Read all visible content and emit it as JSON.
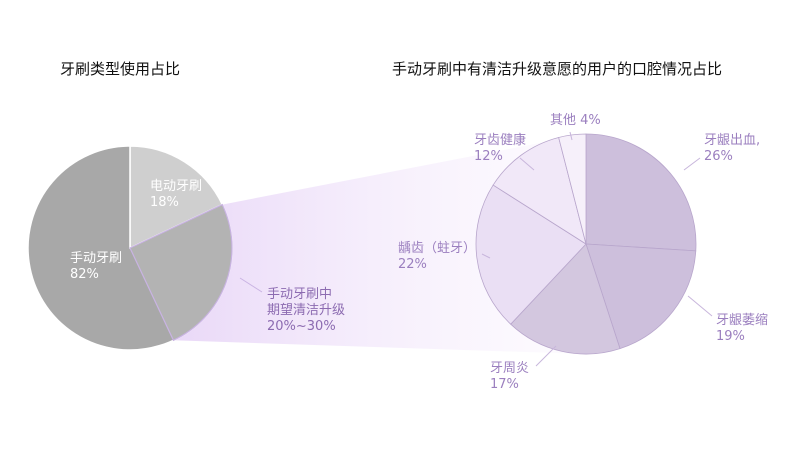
{
  "titles": {
    "left": "牙刷类型使用占比",
    "right": "手动牙刷中有清洁升级意愿的用户的口腔情况占比"
  },
  "upgrade_note": {
    "lines": [
      "手动牙刷中",
      "期望清洁升级",
      "20%~30%"
    ],
    "color": "#8c6bb1"
  },
  "chart_data": [
    {
      "type": "pie",
      "title": "牙刷类型使用占比",
      "slices": [
        {
          "label": "电动牙刷",
          "value": 18,
          "value_label": "18%",
          "color": "#cfcfcf"
        },
        {
          "label": "手动牙刷",
          "value": 82,
          "value_label": "82%",
          "color": "#a8a8a8"
        }
      ]
    },
    {
      "type": "pie",
      "title": "手动牙刷中有清洁升级意愿的用户的口腔情况占比",
      "slices": [
        {
          "label": "牙龈出血,",
          "value": 26,
          "value_label": "26%",
          "color": "#cdbfdc"
        },
        {
          "label": "牙龈萎缩",
          "value": 19,
          "value_label": "19%",
          "color": "#cdbfdc"
        },
        {
          "label": "牙周炎",
          "value": 17,
          "value_label": "17%",
          "color": "#d3c7df"
        },
        {
          "label": "龋齿（蛀牙）",
          "value": 22,
          "value_label": "22%",
          "color": "#eadff4"
        },
        {
          "label": "牙齿健康",
          "value": 12,
          "value_label": "12%",
          "color": "#f1e8f8"
        },
        {
          "label": "其他",
          "value": 4,
          "value_label": "4%",
          "color": "#f6f0fa"
        }
      ]
    }
  ],
  "colors": {
    "label_purple": "#9b7fbf",
    "label_white": "#ffffff",
    "slice_border": "#ffffff",
    "highlight_edge": "#c9b3e3"
  }
}
